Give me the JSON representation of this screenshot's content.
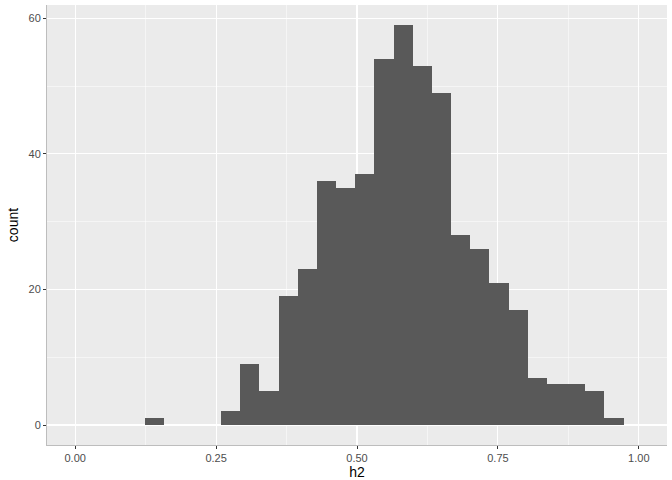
{
  "chart_data": {
    "type": "histogram",
    "x_label": "h2",
    "y_label": "count",
    "bins": [
      0.123,
      0.157,
      0.191,
      0.225,
      0.259,
      0.293,
      0.327,
      0.361,
      0.395,
      0.429,
      0.463,
      0.497,
      0.531,
      0.565,
      0.599,
      0.633,
      0.667,
      0.701,
      0.735,
      0.769,
      0.803,
      0.837,
      0.871,
      0.905,
      0.939,
      0.973
    ],
    "values": [
      1,
      0,
      0,
      0,
      2,
      9,
      5,
      19,
      23,
      36,
      35,
      37,
      54,
      59,
      53,
      49,
      28,
      26,
      21,
      17,
      7,
      6,
      6,
      5,
      1
    ],
    "color": "#595959",
    "xlim": [
      -0.05,
      1.05
    ],
    "xticks": [
      {
        "value": 0,
        "label": "0.00"
      },
      {
        "value": 0.25,
        "label": "0.25"
      },
      {
        "value": 0.5,
        "label": "0.50"
      },
      {
        "value": 0.75,
        "label": "0.75"
      },
      {
        "value": 1,
        "label": "1.00"
      }
    ],
    "ylim": [
      -2.95,
      61.95
    ],
    "yticks": [
      0,
      20,
      40,
      60
    ],
    "grid": true
  }
}
